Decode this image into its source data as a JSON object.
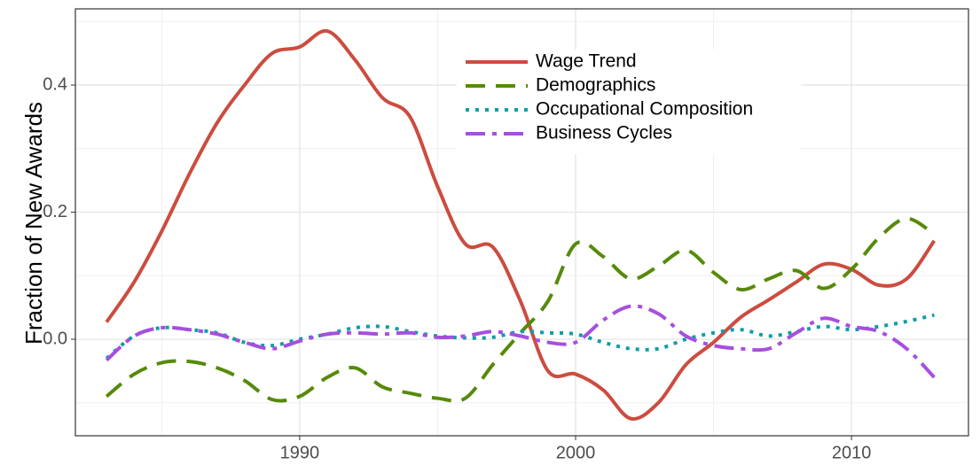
{
  "chart_data": {
    "type": "line",
    "ylabel": "Fraction of New Awards",
    "x": [
      1983,
      1984,
      1985,
      1986,
      1987,
      1988,
      1989,
      1990,
      1991,
      1992,
      1993,
      1994,
      1995,
      1996,
      1997,
      1998,
      1999,
      2000,
      2001,
      2002,
      2003,
      2004,
      2005,
      2006,
      2007,
      2008,
      2009,
      2010,
      2011,
      2012,
      2013
    ],
    "series": [
      {
        "name": "Wage Trend",
        "color": "#cc4c3f",
        "linetype": "solid",
        "values": [
          0.027,
          0.09,
          0.17,
          0.26,
          0.34,
          0.4,
          0.45,
          0.46,
          0.485,
          0.44,
          0.38,
          0.35,
          0.24,
          0.15,
          0.145,
          0.06,
          -0.05,
          -0.055,
          -0.08,
          -0.125,
          -0.1,
          -0.04,
          -0.005,
          0.035,
          0.062,
          0.09,
          0.118,
          0.11,
          0.085,
          0.095,
          0.155
        ]
      },
      {
        "name": "Demographics",
        "color": "#568a0a",
        "linetype": "dashed",
        "values": [
          -0.09,
          -0.055,
          -0.037,
          -0.035,
          -0.045,
          -0.065,
          -0.095,
          -0.09,
          -0.06,
          -0.045,
          -0.075,
          -0.085,
          -0.093,
          -0.093,
          -0.04,
          0.01,
          0.06,
          0.15,
          0.13,
          0.095,
          0.115,
          0.14,
          0.105,
          0.078,
          0.095,
          0.108,
          0.08,
          0.11,
          0.16,
          0.19,
          0.165
        ]
      },
      {
        "name": "Occupational Composition",
        "color": "#0f9ea6",
        "linetype": "dotted",
        "values": [
          -0.03,
          0.005,
          0.018,
          0.015,
          0.01,
          -0.005,
          -0.01,
          0,
          0.008,
          0.018,
          0.02,
          0.012,
          0.005,
          0.002,
          0.003,
          0.012,
          0.01,
          0.008,
          -0.005,
          -0.015,
          -0.015,
          0,
          0.01,
          0.015,
          0.005,
          0.012,
          0.02,
          0.015,
          0.02,
          0.028,
          0.038
        ]
      },
      {
        "name": "Business Cycles",
        "color": "#a64fdf",
        "linetype": "dotdash",
        "values": [
          -0.033,
          0.005,
          0.018,
          0.015,
          0.008,
          -0.005,
          -0.015,
          -0.003,
          0.008,
          0.01,
          0.008,
          0.01,
          0.003,
          0.005,
          0.012,
          0.005,
          -0.005,
          -0.005,
          0.03,
          0.052,
          0.04,
          0.005,
          -0.01,
          -0.015,
          -0.015,
          0.01,
          0.033,
          0.02,
          0.012,
          -0.015,
          -0.06
        ]
      }
    ],
    "xlim": [
      1981.87,
      2014.24
    ],
    "xticks": [
      1990,
      2000,
      2010
    ],
    "ylim": [
      -0.152,
      0.52
    ],
    "yticks": [
      {
        "value": 0,
        "label": "0.0"
      },
      0.2,
      0.4
    ],
    "x_minor_grid": [
      1985,
      1995,
      2005
    ],
    "y_minor_grid": [
      -0.1,
      0.1,
      0.3,
      0.5
    ],
    "grid": true,
    "legend": "top-center"
  }
}
